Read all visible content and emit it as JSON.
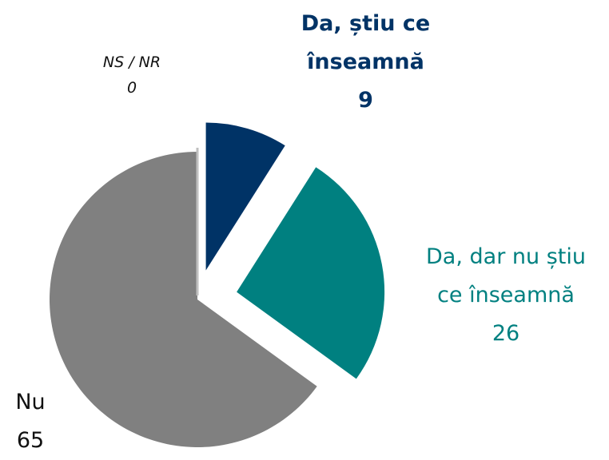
{
  "chart_data": {
    "type": "pie",
    "categories": [
      "Da, știu ce înseamnă",
      "Da, dar nu știu ce înseamnă",
      "Nu",
      "NS / NR"
    ],
    "values": [
      9,
      26,
      65,
      0
    ],
    "colors": [
      "#003366",
      "#008080",
      "#808080",
      "#bfbfbf"
    ]
  }
}
